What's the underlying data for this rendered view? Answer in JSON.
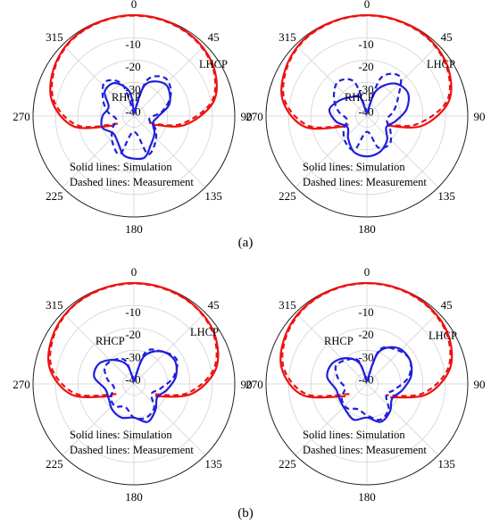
{
  "figure": {
    "captions": [
      "(a)",
      "(b)"
    ]
  },
  "chart_data": [
    {
      "type": "polar-line",
      "panel": "a-left",
      "angle_ticks": [
        "0",
        "45",
        "90",
        "135",
        "180",
        "225",
        "270",
        "315"
      ],
      "radial_ticks": [
        "-10",
        "-20",
        "-30",
        "-40"
      ],
      "rlim": [
        -45,
        0
      ],
      "labels": {
        "lhcp": "LHCP",
        "rhcp": "RHCP"
      },
      "notes": [
        "Solid lines: Simulation",
        "Dashed lines: Measurement"
      ],
      "colors": {
        "lhcp": "#ee1111",
        "rhcp": "#1f1fdd"
      },
      "series": [
        {
          "name": "LHCP",
          "style": "solid",
          "color": "lhcp",
          "theta": [
            -115,
            -100,
            -80,
            -60,
            -40,
            -20,
            0,
            20,
            40,
            60,
            80,
            100,
            115
          ],
          "r_db": [
            -35,
            -18,
            -8,
            -3.5,
            -1,
            -0.3,
            0,
            -0.3,
            -1.2,
            -3.5,
            -9,
            -22,
            -36
          ]
        },
        {
          "name": "LHCP",
          "style": "dashed",
          "color": "lhcp",
          "theta": [
            -115,
            -100,
            -80,
            -60,
            -40,
            -20,
            0,
            20,
            40,
            60,
            80,
            100,
            115
          ],
          "r_db": [
            -37,
            -20,
            -9,
            -4,
            -1.3,
            -0.5,
            -0.2,
            -0.5,
            -1.5,
            -4,
            -10,
            -24,
            -38
          ]
        },
        {
          "name": "RHCP",
          "style": "solid",
          "color": "rhcp",
          "theta": [
            0,
            20,
            45,
            70,
            90,
            110,
            130,
            150,
            165,
            180,
            195,
            210,
            230,
            250,
            270,
            290,
            310,
            330,
            350,
            360
          ],
          "r_db": [
            -44,
            -30,
            -25,
            -28,
            -34,
            -36,
            -33,
            -30,
            -26,
            -26,
            -27,
            -31,
            -33,
            -30,
            -31,
            -33,
            -28,
            -28,
            -34,
            -44
          ]
        },
        {
          "name": "RHCP",
          "style": "dashed",
          "color": "rhcp",
          "theta": [
            0,
            20,
            40,
            60,
            80,
            100,
            120,
            140,
            160,
            180,
            200,
            220,
            240,
            260,
            280,
            300,
            320,
            340,
            360
          ],
          "r_db": [
            -44,
            -28,
            -23,
            -26,
            -32,
            -38,
            -34,
            -30,
            -27,
            -38,
            -27,
            -30,
            -34,
            -37,
            -33,
            -29,
            -25,
            -30,
            -44
          ]
        }
      ]
    },
    {
      "type": "polar-line",
      "panel": "a-right",
      "angle_ticks": [
        "0",
        "45",
        "90",
        "135",
        "180",
        "225",
        "270",
        "315"
      ],
      "radial_ticks": [
        "-10",
        "-20",
        "-30",
        "-40"
      ],
      "rlim": [
        -45,
        0
      ],
      "labels": {
        "lhcp": "LHCP",
        "rhcp": "RHCP"
      },
      "notes": [
        "Solid lines: Simulation",
        "Dashed lines: Measurement"
      ],
      "colors": {
        "lhcp": "#ee1111",
        "rhcp": "#1f1fdd"
      },
      "series": [
        {
          "name": "LHCP",
          "style": "solid",
          "color": "lhcp",
          "theta": [
            -115,
            -100,
            -80,
            -60,
            -40,
            -20,
            0,
            20,
            40,
            60,
            80,
            100,
            115
          ],
          "r_db": [
            -34,
            -17,
            -7,
            -3,
            -0.8,
            -0.2,
            0,
            -0.2,
            -0.8,
            -3,
            -8,
            -20,
            -35
          ]
        },
        {
          "name": "LHCP",
          "style": "dashed",
          "color": "lhcp",
          "theta": [
            -115,
            -100,
            -80,
            -60,
            -40,
            -20,
            0,
            20,
            40,
            60,
            80,
            100,
            115
          ],
          "r_db": [
            -36,
            -19,
            -8,
            -3.5,
            -1.1,
            -0.4,
            -0.1,
            -0.4,
            -1.1,
            -3.5,
            -9,
            -23,
            -37
          ]
        },
        {
          "name": "RHCP",
          "style": "solid",
          "color": "rhcp",
          "theta": [
            0,
            20,
            40,
            60,
            80,
            100,
            120,
            140,
            160,
            180,
            200,
            220,
            240,
            260,
            280,
            300,
            320,
            340,
            360
          ],
          "r_db": [
            -44,
            -33,
            -26,
            -24,
            -27,
            -32,
            -35,
            -31,
            -28,
            -27,
            -28,
            -32,
            -35,
            -31,
            -28,
            -31,
            -34,
            -36,
            -44
          ]
        },
        {
          "name": "RHCP",
          "style": "dashed",
          "color": "rhcp",
          "theta": [
            0,
            20,
            40,
            60,
            80,
            100,
            120,
            140,
            160,
            180,
            200,
            220,
            240,
            260,
            280,
            300,
            320,
            340,
            360
          ],
          "r_db": [
            -44,
            -27,
            -22,
            -29,
            -33,
            -36,
            -33,
            -29,
            -30,
            -38,
            -29,
            -30,
            -33,
            -36,
            -32,
            -28,
            -25,
            -29,
            -44
          ]
        }
      ]
    },
    {
      "type": "polar-line",
      "panel": "b-left",
      "angle_ticks": [
        "0",
        "45",
        "90",
        "135",
        "180",
        "225",
        "270",
        "315"
      ],
      "radial_ticks": [
        "-10",
        "-20",
        "-30",
        "-40"
      ],
      "rlim": [
        -45,
        0
      ],
      "labels": {
        "lhcp": "LHCP",
        "rhcp": "RHCP"
      },
      "notes": [
        "Solid lines: Simulation",
        "Dashed lines: Measurement"
      ],
      "colors": {
        "lhcp": "#ee1111",
        "rhcp": "#1f1fdd"
      },
      "series": [
        {
          "name": "LHCP",
          "style": "solid",
          "color": "lhcp",
          "theta": [
            -120,
            -100,
            -80,
            -60,
            -40,
            -20,
            0,
            20,
            40,
            60,
            80,
            100,
            120
          ],
          "r_db": [
            -34,
            -17,
            -7,
            -3,
            -1,
            -0.3,
            0,
            -0.3,
            -1,
            -3,
            -8,
            -19,
            -34
          ]
        },
        {
          "name": "LHCP",
          "style": "dashed",
          "color": "lhcp",
          "theta": [
            -120,
            -100,
            -80,
            -60,
            -40,
            -20,
            0,
            20,
            40,
            60,
            80,
            100,
            120
          ],
          "r_db": [
            -36,
            -19,
            -8,
            -3.5,
            -1.2,
            -0.5,
            -0.2,
            -0.5,
            -1.2,
            -3.5,
            -9,
            -21,
            -36
          ]
        },
        {
          "name": "RHCP",
          "style": "solid",
          "color": "rhcp",
          "theta": [
            0,
            20,
            40,
            60,
            80,
            100,
            120,
            140,
            160,
            180,
            200,
            220,
            240,
            260,
            280,
            300,
            320,
            340,
            360
          ],
          "r_db": [
            -44,
            -32,
            -26,
            -24,
            -26,
            -30,
            -33,
            -30,
            -27,
            -30,
            -29,
            -30,
            -32,
            -32,
            -27,
            -27,
            -31,
            -36,
            -44
          ]
        },
        {
          "name": "RHCP",
          "style": "dashed",
          "color": "rhcp",
          "theta": [
            0,
            20,
            40,
            60,
            80,
            100,
            120,
            140,
            160,
            180,
            200,
            220,
            240,
            260,
            280,
            300,
            320,
            340,
            360
          ],
          "r_db": [
            -44,
            -30,
            -26,
            -23,
            -27,
            -33,
            -36,
            -31,
            -29,
            -30,
            -34,
            -32,
            -33,
            -36,
            -33,
            -30,
            -31,
            -34,
            -44
          ]
        }
      ]
    },
    {
      "type": "polar-line",
      "panel": "b-right",
      "angle_ticks": [
        "0",
        "45",
        "90",
        "135",
        "180",
        "225",
        "270",
        "315"
      ],
      "radial_ticks": [
        "-10",
        "-20",
        "-30",
        "-40"
      ],
      "rlim": [
        -45,
        0
      ],
      "labels": {
        "lhcp": "LHCP",
        "rhcp": "RHCP"
      },
      "notes": [
        "Solid lines: Simulation",
        "Dashed lines: Measurement"
      ],
      "colors": {
        "lhcp": "#ee1111",
        "rhcp": "#1f1fdd"
      },
      "series": [
        {
          "name": "LHCP",
          "style": "solid",
          "color": "lhcp",
          "theta": [
            -120,
            -100,
            -80,
            -60,
            -40,
            -20,
            0,
            20,
            40,
            60,
            80,
            100,
            120
          ],
          "r_db": [
            -34,
            -16,
            -6.5,
            -2.8,
            -0.9,
            -0.2,
            0,
            -0.2,
            -0.9,
            -2.8,
            -7.5,
            -18,
            -33
          ]
        },
        {
          "name": "LHCP",
          "style": "dashed",
          "color": "lhcp",
          "theta": [
            -120,
            -100,
            -80,
            -60,
            -40,
            -20,
            0,
            20,
            40,
            60,
            80,
            100,
            120
          ],
          "r_db": [
            -36,
            -18,
            -7.5,
            -3.3,
            -1.2,
            -0.4,
            -0.1,
            -0.4,
            -1.2,
            -3.3,
            -8.5,
            -20,
            -35
          ]
        },
        {
          "name": "RHCP",
          "style": "solid",
          "color": "rhcp",
          "theta": [
            0,
            20,
            40,
            60,
            80,
            100,
            120,
            140,
            160,
            180,
            200,
            220,
            240,
            260,
            280,
            300,
            320,
            340,
            360
          ],
          "r_db": [
            -44,
            -30,
            -24,
            -23,
            -25,
            -29,
            -32,
            -29,
            -27,
            -30,
            -28,
            -30,
            -31,
            -31,
            -27,
            -27,
            -30,
            -35,
            -44
          ]
        },
        {
          "name": "RHCP",
          "style": "dashed",
          "color": "rhcp",
          "theta": [
            0,
            20,
            40,
            60,
            80,
            100,
            120,
            140,
            160,
            180,
            200,
            220,
            240,
            260,
            280,
            300,
            320,
            340,
            360
          ],
          "r_db": [
            -44,
            -29,
            -25,
            -23,
            -26,
            -32,
            -35,
            -30,
            -28,
            -31,
            -33,
            -31,
            -32,
            -35,
            -32,
            -29,
            -31,
            -34,
            -44
          ]
        }
      ]
    }
  ]
}
